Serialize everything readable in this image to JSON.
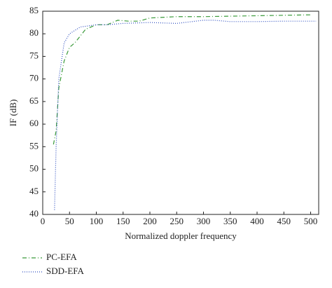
{
  "chart_data": {
    "type": "line",
    "xlabel": "Normalized doppler frequency",
    "ylabel": "IF (dB)",
    "xlim": [
      0,
      515
    ],
    "ylim": [
      40,
      85
    ],
    "xticks": [
      0,
      50,
      100,
      150,
      200,
      250,
      300,
      350,
      400,
      450,
      500
    ],
    "yticks": [
      40,
      45,
      50,
      55,
      60,
      65,
      70,
      75,
      80,
      85
    ],
    "series": [
      {
        "name": "PC-EFA",
        "color": "#3a9a3a",
        "dash": "6 3 1 3",
        "x": [
          20,
          25,
          30,
          40,
          50,
          60,
          80,
          100,
          120,
          140,
          160,
          180,
          200,
          250,
          300,
          350,
          400,
          450,
          500
        ],
        "values": [
          55.5,
          58.5,
          68,
          74,
          77,
          78,
          81,
          82,
          82,
          83,
          82.8,
          82.8,
          83.5,
          83.8,
          83.8,
          83.9,
          84,
          84.1,
          84.2
        ]
      },
      {
        "name": "SDD-EFA",
        "color": "#3050c0",
        "dash": "1 2",
        "x": [
          22,
          25,
          30,
          40,
          50,
          70,
          100,
          120,
          150,
          200,
          250,
          300,
          320,
          350,
          400,
          450,
          510
        ],
        "values": [
          41,
          55,
          70,
          78,
          80,
          81.5,
          82,
          82,
          82.3,
          82.5,
          82.3,
          83,
          83,
          82.7,
          82.7,
          82.8,
          82.8
        ]
      }
    ]
  }
}
